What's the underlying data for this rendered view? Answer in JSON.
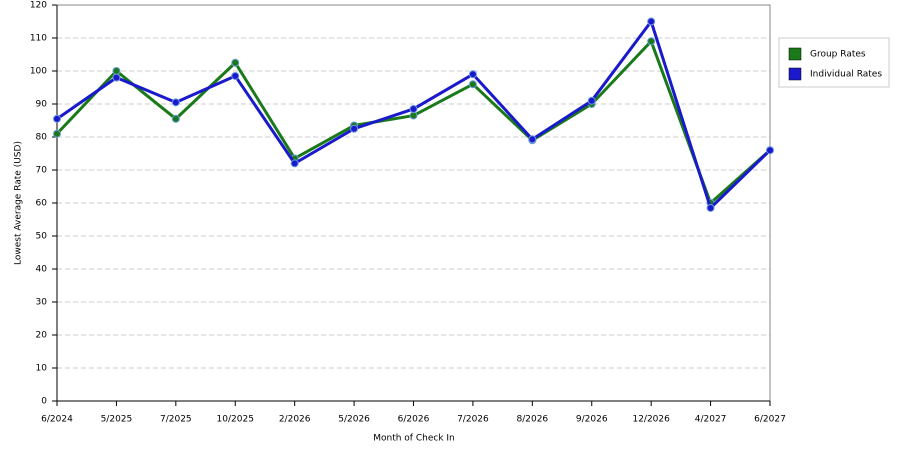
{
  "chart_data": {
    "type": "line",
    "x_label": "Month of Check In",
    "y_label": "Lowest Average Rate (USD)",
    "categories": [
      "6/2024",
      "5/2025",
      "7/2025",
      "10/2025",
      "2/2026",
      "5/2026",
      "6/2026",
      "7/2026",
      "8/2026",
      "9/2026",
      "12/2026",
      "4/2027",
      "6/2027"
    ],
    "series": [
      {
        "name": "Group Rates",
        "color": "#1a7a1a",
        "values": [
          81,
          100,
          85.5,
          102.5,
          73.5,
          83.5,
          86.5,
          96,
          79,
          90,
          109,
          60,
          76
        ]
      },
      {
        "name": "Individual Rates",
        "color": "#1a1acc",
        "values": [
          85.5,
          98,
          90.5,
          98.5,
          72,
          82.5,
          88.5,
          99,
          79.3,
          91,
          115,
          58.5,
          76
        ]
      }
    ],
    "ylim": [
      0,
      120
    ],
    "yticks": [
      0,
      10,
      20,
      30,
      40,
      50,
      60,
      70,
      80,
      90,
      100,
      110,
      120
    ],
    "grid": true,
    "legend": "right"
  }
}
